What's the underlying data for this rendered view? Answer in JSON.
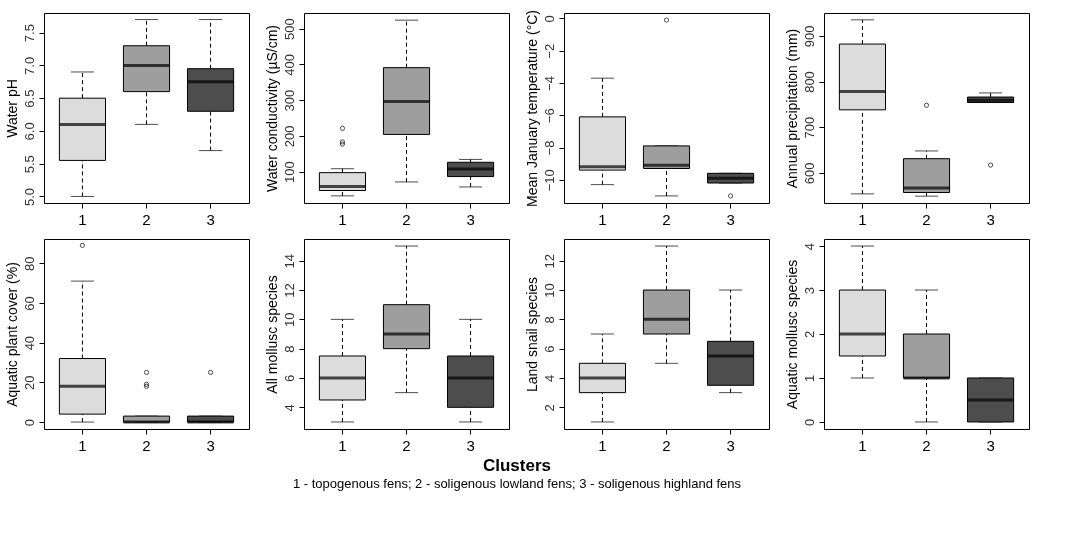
{
  "chart_data": [
    {
      "type": "box",
      "ylabel": "Water pH",
      "categories": [
        "1",
        "2",
        "3"
      ],
      "colors": [
        "#dcdcdc",
        "#9e9e9e",
        "#4d4d4d"
      ],
      "ylim": [
        4.9,
        7.8
      ],
      "yticks": [
        {
          "value": 5,
          "label": "5.0"
        },
        {
          "value": 5.5,
          "label": "5.5"
        },
        {
          "value": 6,
          "label": "6.0"
        },
        {
          "value": 6.5,
          "label": "6.5"
        },
        {
          "value": 7,
          "label": "7.0"
        },
        {
          "value": 7.5,
          "label": "7.5"
        }
      ],
      "boxes": [
        {
          "low": 5.0,
          "q1": 5.55,
          "median": 6.1,
          "q3": 6.5,
          "high": 6.9
        },
        {
          "low": 6.1,
          "q1": 6.6,
          "median": 7.0,
          "q3": 7.3,
          "high": 7.7
        },
        {
          "low": 5.7,
          "q1": 6.3,
          "median": 6.75,
          "q3": 6.95,
          "high": 7.7
        }
      ]
    },
    {
      "type": "box",
      "ylabel": "Water conductivity (µS/cm)",
      "categories": [
        "1",
        "2",
        "3"
      ],
      "colors": [
        "#dcdcdc",
        "#9e9e9e",
        "#4d4d4d"
      ],
      "ylim": [
        12,
        544
      ],
      "yticks": [
        100,
        200,
        300,
        400,
        500
      ],
      "boxes": [
        {
          "low": 32,
          "q1": 47,
          "median": 58,
          "q3": 97,
          "high": 108,
          "outliers": [
            177,
            183,
            221
          ]
        },
        {
          "low": 71,
          "q1": 204,
          "median": 296,
          "q3": 391,
          "high": 524
        },
        {
          "low": 57,
          "q1": 86,
          "median": 107,
          "q3": 126,
          "high": 134
        }
      ]
    },
    {
      "type": "box",
      "ylabel": "Mean January temperature (°C)",
      "categories": [
        "1",
        "2",
        "3"
      ],
      "colors": [
        "#dcdcdc",
        "#9e9e9e",
        "#4d4d4d"
      ],
      "ylim": [
        -11.44,
        0.34
      ],
      "yticks": [
        -10,
        -8,
        -6,
        -4,
        -2,
        0
      ],
      "boxes": [
        {
          "low": -10.3,
          "q1": -9.4,
          "median": -9.2,
          "q3": -6.1,
          "high": -3.7
        },
        {
          "low": -11.0,
          "q1": -9.3,
          "median": -9.1,
          "q3": -7.9,
          "high": -7.9,
          "outliers": [
            -0.1
          ]
        },
        {
          "low": -10.2,
          "q1": -10.2,
          "median": -9.9,
          "q3": -9.6,
          "high": -9.6,
          "outliers": [
            -11.0
          ]
        }
      ]
    },
    {
      "type": "box",
      "ylabel": "Annual precipitation (mm)",
      "categories": [
        "1",
        "2",
        "3"
      ],
      "colors": [
        "#dcdcdc",
        "#9e9e9e",
        "#4d4d4d"
      ],
      "ylim": [
        534,
        950
      ],
      "yticks": [
        600,
        700,
        800,
        900
      ],
      "boxes": [
        {
          "low": 554,
          "q1": 738,
          "median": 778,
          "q3": 882,
          "high": 935
        },
        {
          "low": 549,
          "q1": 557,
          "median": 567,
          "q3": 631,
          "high": 648,
          "outliers": [
            748
          ]
        },
        {
          "low": 754,
          "q1": 754,
          "median": 759,
          "q3": 766,
          "high": 775,
          "outliers": [
            617
          ]
        }
      ]
    },
    {
      "type": "box",
      "ylabel": "Aquatic plant cover (%)",
      "categories": [
        "1",
        "2",
        "3"
      ],
      "colors": [
        "#dcdcdc",
        "#9e9e9e",
        "#4d4d4d"
      ],
      "ylim": [
        -3.5,
        92.2
      ],
      "yticks": [
        0,
        20,
        40,
        60,
        80
      ],
      "boxes": [
        {
          "low": 0,
          "q1": 4,
          "median": 18,
          "q3": 32,
          "high": 71,
          "outliers": [
            89
          ]
        },
        {
          "low": 0,
          "q1": 0,
          "median": 0,
          "q3": 3,
          "high": 3,
          "outliers": [
            18,
            19,
            25
          ]
        },
        {
          "low": 0,
          "q1": 0,
          "median": 0,
          "q3": 3,
          "high": 3,
          "outliers": [
            25
          ]
        }
      ]
    },
    {
      "type": "box",
      "ylabel": "All mollusc species",
      "xlabel": "Clusters",
      "annotations": [
        "1 - topogenous fens; 2 - soligenous lowland fens; 3 - soligenous highland fens"
      ],
      "categories": [
        "1",
        "2",
        "3"
      ],
      "colors": [
        "#dcdcdc",
        "#9e9e9e",
        "#4d4d4d"
      ],
      "ylim": [
        2.52,
        15.48
      ],
      "yticks": [
        4,
        6,
        8,
        10,
        12,
        14
      ],
      "boxes": [
        {
          "low": 3,
          "q1": 4.5,
          "median": 6,
          "q3": 7.5,
          "high": 10
        },
        {
          "low": 5,
          "q1": 8,
          "median": 9,
          "q3": 11,
          "high": 15
        },
        {
          "low": 3,
          "q1": 4,
          "median": 6,
          "q3": 7.5,
          "high": 10
        }
      ]
    },
    {
      "type": "box",
      "ylabel": "Land snail species",
      "categories": [
        "1",
        "2",
        "3"
      ],
      "colors": [
        "#dcdcdc",
        "#9e9e9e",
        "#4d4d4d"
      ],
      "ylim": [
        0.52,
        13.48
      ],
      "yticks": [
        2,
        4,
        6,
        8,
        10,
        12
      ],
      "boxes": [
        {
          "low": 1,
          "q1": 3,
          "median": 4,
          "q3": 5,
          "high": 7
        },
        {
          "low": 5,
          "q1": 7,
          "median": 8,
          "q3": 10,
          "high": 13
        },
        {
          "low": 3,
          "q1": 3.5,
          "median": 5.5,
          "q3": 6.5,
          "high": 10
        }
      ]
    },
    {
      "type": "box",
      "ylabel": "Aquatic mollusc species",
      "categories": [
        "1",
        "2",
        "3"
      ],
      "colors": [
        "#dcdcdc",
        "#9e9e9e",
        "#4d4d4d"
      ],
      "ylim": [
        -0.16,
        4.16
      ],
      "yticks": [
        0,
        1,
        2,
        3,
        4
      ],
      "boxes": [
        {
          "low": 1,
          "q1": 1.5,
          "median": 2,
          "q3": 3,
          "high": 4
        },
        {
          "low": 0,
          "q1": 1,
          "median": 1,
          "q3": 2,
          "high": 3
        },
        {
          "low": 0,
          "q1": 0,
          "median": 0.5,
          "q3": 1,
          "high": 1
        }
      ]
    }
  ]
}
